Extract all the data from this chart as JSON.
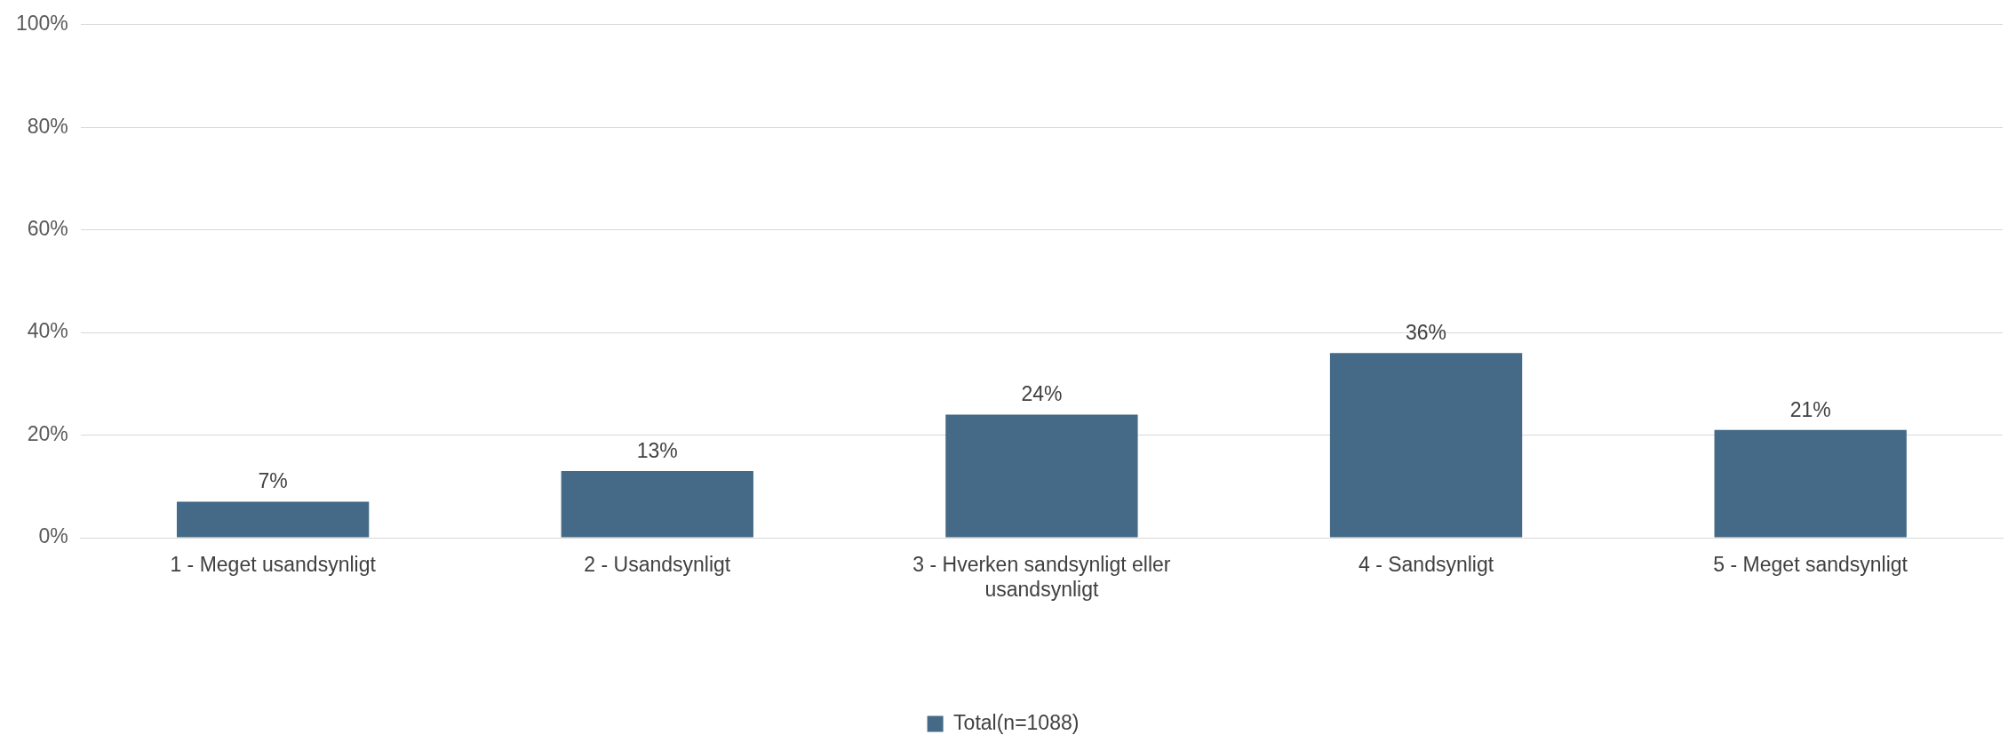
{
  "chart_data": {
    "type": "bar",
    "categories": [
      "1 - Meget usandsynligt",
      "2 - Usandsynligt",
      "3 - Hverken sandsynligt eller usandsynligt",
      "4 - Sandsynligt",
      "5 - Meget sandsynligt"
    ],
    "series": [
      {
        "name": "Total(n=1088)",
        "color": "#446a87",
        "values": [
          7,
          13,
          24,
          36,
          21
        ],
        "value_labels": [
          "7%",
          "13%",
          "24%",
          "36%",
          "21%"
        ]
      }
    ],
    "ylim": [
      0,
      100
    ],
    "yticks": [
      {
        "value": 0,
        "label": "0%"
      },
      {
        "value": 20,
        "label": "20%"
      },
      {
        "value": 40,
        "label": "40%"
      },
      {
        "value": 60,
        "label": "60%"
      },
      {
        "value": 80,
        "label": "80%"
      },
      {
        "value": 100,
        "label": "100%"
      }
    ],
    "grid": "y",
    "legend": "bottom"
  }
}
